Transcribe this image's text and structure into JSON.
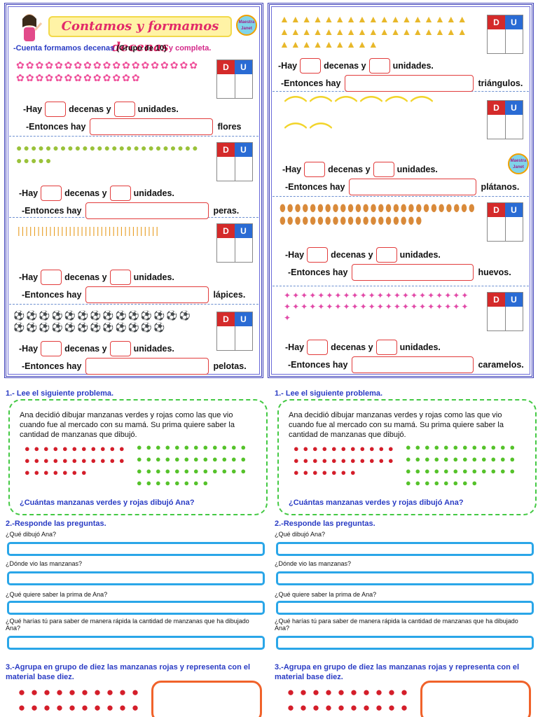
{
  "worksheet": {
    "title": "Contamos y formamos decenas",
    "logo_text": "Maestra Janet",
    "instruction_pre": "-Cuenta formamos decenas",
    "instruction_mid": "(Grupo de 10)",
    "instruction_post": "y completa.",
    "du_labels": {
      "d": "D",
      "u": "U"
    },
    "hay": "-Hay",
    "decenas": "decenas y",
    "unidades": "unidades.",
    "entonces": "-Entonces hay",
    "left_items": [
      {
        "name": "flores",
        "icon": "✿",
        "color": "#ef4f9a",
        "count": 32
      },
      {
        "name": "peras.",
        "icon": "●",
        "color": "#9ac23a",
        "count": 30
      },
      {
        "name": "lápices.",
        "icon": "|",
        "color": "#e8a02a",
        "count": 36
      },
      {
        "name": "pelotas.",
        "icon": "⚽",
        "color": "#2a8a2a",
        "count": 26
      }
    ],
    "left_first_suffix": "flores.",
    "right_items": [
      {
        "name": "triángulos.",
        "icon": "▲",
        "color": "#e8b82a",
        "count": 43
      },
      {
        "name": "plátanos.",
        "icon": "⌒",
        "color": "#f2d42a",
        "count": 8
      },
      {
        "name": "huevos.",
        "icon": "⬮",
        "color": "#d98a3a",
        "count": 45
      },
      {
        "name": "caramelos.",
        "icon": "✦",
        "color": "#e24aa8",
        "count": 45
      }
    ]
  },
  "problem": {
    "step1": "1.- Lee el siguiente problema.",
    "text": "Ana decidió dibujar manzanas verdes y rojas como las que vio cuando fue al mercado con su mamá. Su prima quiere saber la cantidad de manzanas que dibujó.",
    "question": "¿Cuántas manzanas verdes  y rojas dibujó Ana?",
    "step2": "2.-Responde las preguntas.",
    "questions": [
      "¿Qué dibujó Ana?",
      "¿Dónde vio las manzanas?",
      "¿Qué quiere saber la prima de Ana?",
      "¿Qué harías tú para saber de manera rápida la cantidad de manzanas que ha dibujado Ana?"
    ],
    "step3": "3.-Agrupa en grupo de diez las manzanas rojas y representa con el material base diez."
  }
}
